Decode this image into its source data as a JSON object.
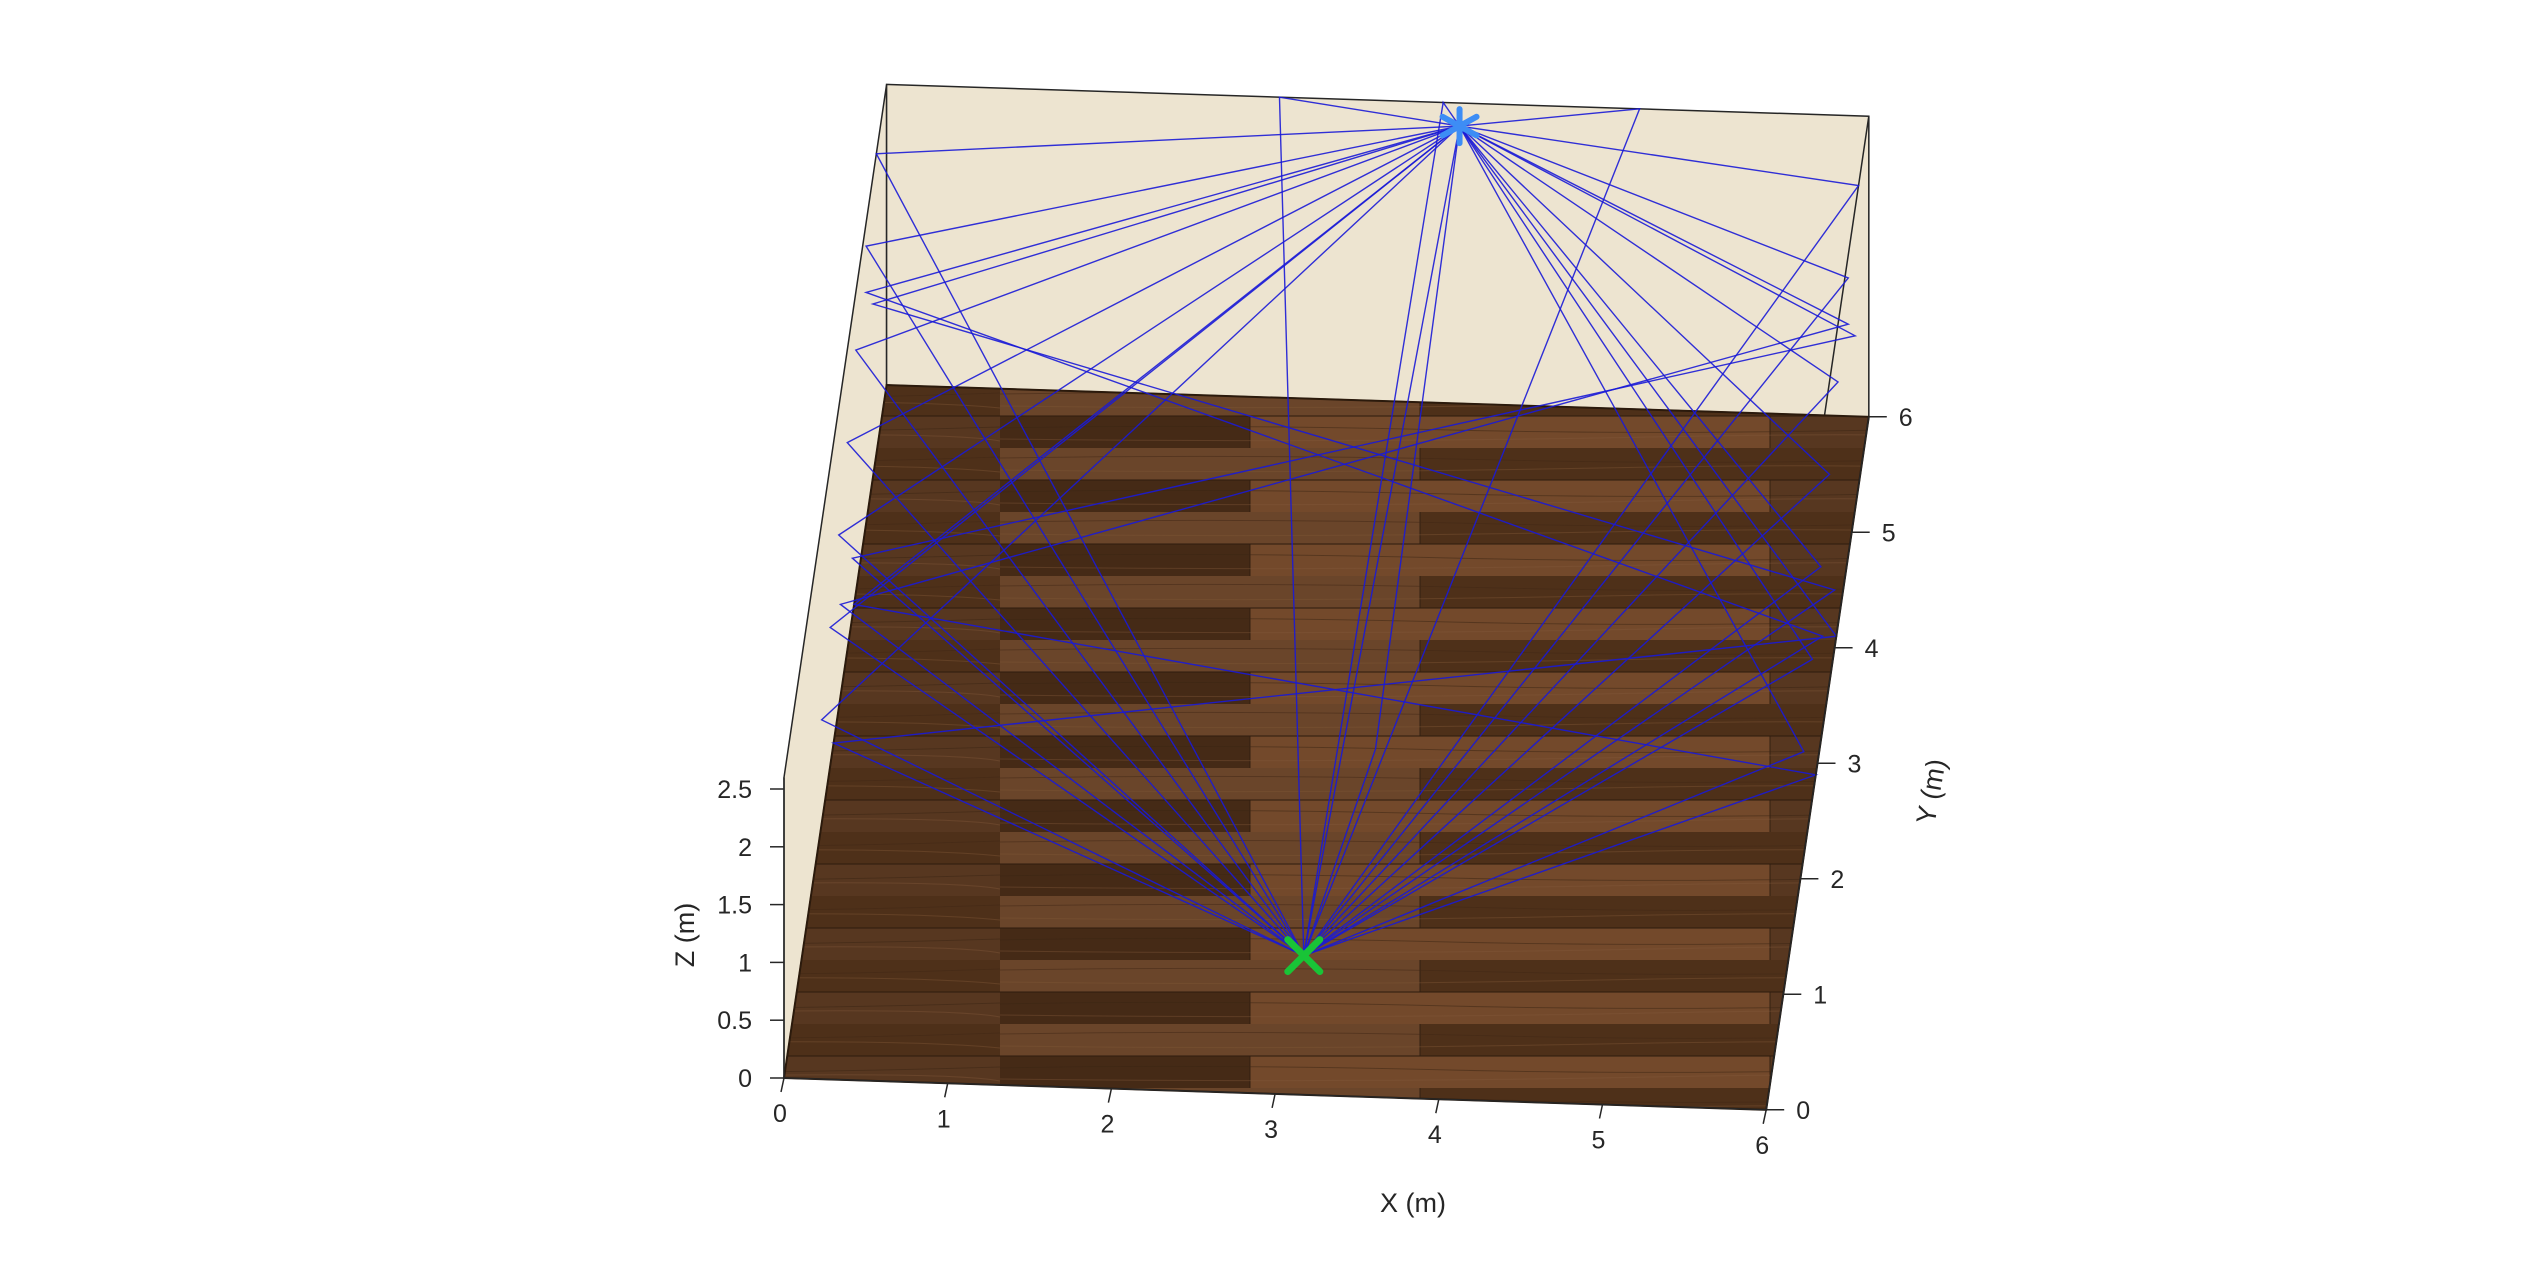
{
  "chart_data": {
    "type": "3d-scene",
    "title": "",
    "room": {
      "x_range": [
        0,
        6
      ],
      "y_range": [
        0,
        6
      ],
      "z_range": [
        0,
        2.6
      ]
    },
    "axes": {
      "x": {
        "label": "X (m)",
        "ticks": [
          "0",
          "1",
          "2",
          "3",
          "4",
          "5",
          "6"
        ],
        "tick_values": [
          0,
          1,
          2,
          3,
          4,
          5,
          6
        ]
      },
      "y": {
        "label": "Y (m)",
        "ticks": [
          "0",
          "1",
          "2",
          "3",
          "4",
          "5",
          "6"
        ],
        "tick_values": [
          0,
          1,
          2,
          3,
          4,
          5,
          6
        ]
      },
      "z": {
        "label": "Z (m)",
        "ticks": [
          "0",
          "0.5",
          "1",
          "1.5",
          "2",
          "2.5"
        ],
        "tick_values": [
          0,
          0.5,
          1,
          1.5,
          2,
          2.5
        ]
      }
    },
    "grid": false,
    "floor_texture": "dark-wood-planks",
    "colors": {
      "wall": "#ede4d0",
      "floor": "#5a3a22",
      "ray": "#1a1ad6",
      "transmitter": "#19c437",
      "receiver": "#3d8df5",
      "axis": "#262626"
    },
    "transmitter": {
      "label": "",
      "marker": "x",
      "x": 3.05,
      "y": 1.2,
      "z": 0
    },
    "receiver": {
      "label": "",
      "marker": "asterisk",
      "x": 3.5,
      "y": 6.0,
      "z": 2.4
    },
    "rays_description": "Reflected propagation paths between transmitter and receiver",
    "rays": [
      [
        [
          3.05,
          1.2,
          0
        ],
        [
          0.0,
          2.2,
          0.9
        ],
        [
          3.5,
          6.0,
          2.4
        ]
      ],
      [
        [
          3.05,
          1.2,
          0
        ],
        [
          0.0,
          2.7,
          1.2
        ],
        [
          3.5,
          6.0,
          2.4
        ]
      ],
      [
        [
          3.05,
          1.2,
          0
        ],
        [
          0.0,
          3.2,
          1.5
        ],
        [
          3.5,
          6.0,
          2.4
        ]
      ],
      [
        [
          3.05,
          1.2,
          0
        ],
        [
          0.0,
          3.7,
          1.8
        ],
        [
          3.5,
          6.0,
          2.4
        ]
      ],
      [
        [
          3.05,
          1.2,
          0
        ],
        [
          0.0,
          4.2,
          2.1
        ],
        [
          3.5,
          6.0,
          2.4
        ]
      ],
      [
        [
          3.05,
          1.2,
          0
        ],
        [
          0.0,
          4.8,
          2.4
        ],
        [
          3.5,
          6.0,
          2.4
        ]
      ],
      [
        [
          3.05,
          1.2,
          0
        ],
        [
          6.0,
          2.2,
          0.9
        ],
        [
          3.5,
          6.0,
          2.4
        ]
      ],
      [
        [
          3.05,
          1.2,
          0
        ],
        [
          6.0,
          2.7,
          1.2
        ],
        [
          3.5,
          6.0,
          2.4
        ]
      ],
      [
        [
          3.05,
          1.2,
          0
        ],
        [
          6.0,
          3.2,
          1.5
        ],
        [
          3.5,
          6.0,
          2.4
        ]
      ],
      [
        [
          3.05,
          1.2,
          0
        ],
        [
          6.0,
          3.7,
          1.8
        ],
        [
          3.5,
          6.0,
          2.4
        ]
      ],
      [
        [
          3.05,
          1.2,
          0
        ],
        [
          6.0,
          4.2,
          2.1
        ],
        [
          3.5,
          6.0,
          2.4
        ]
      ],
      [
        [
          3.05,
          1.2,
          0
        ],
        [
          6.0,
          4.8,
          2.4
        ],
        [
          3.5,
          6.0,
          2.4
        ]
      ],
      [
        [
          3.05,
          1.2,
          0
        ],
        [
          2.4,
          6.0,
          2.6
        ],
        [
          3.5,
          6.0,
          2.4
        ]
      ],
      [
        [
          3.05,
          1.2,
          0
        ],
        [
          4.6,
          6.0,
          2.6
        ],
        [
          3.5,
          6.0,
          2.4
        ]
      ],
      [
        [
          3.05,
          1.2,
          0
        ],
        [
          0.0,
          5.4,
          2.6
        ],
        [
          3.5,
          6.0,
          2.4
        ]
      ],
      [
        [
          3.05,
          1.2,
          0
        ],
        [
          6.0,
          5.4,
          2.6
        ],
        [
          3.5,
          6.0,
          2.4
        ]
      ],
      [
        [
          3.05,
          1.2,
          0
        ],
        [
          3.4,
          6.0,
          2.6
        ],
        [
          3.5,
          6.0,
          2.4
        ]
      ],
      [
        [
          3.05,
          1.2,
          0
        ],
        [
          3.5,
          6.0,
          2.4
        ]
      ],
      [
        [
          3.05,
          1.2,
          0
        ],
        [
          3.3,
          3.0,
          0
        ],
        [
          3.5,
          6.0,
          2.4
        ]
      ],
      [
        [
          3.05,
          1.2,
          0
        ],
        [
          0.0,
          2.9,
          0
        ],
        [
          6.0,
          4.1,
          0
        ],
        [
          3.5,
          6.0,
          2.4
        ]
      ],
      [
        [
          3.05,
          1.2,
          0
        ],
        [
          6.0,
          2.9,
          0
        ],
        [
          0.0,
          4.1,
          0
        ],
        [
          3.5,
          6.0,
          2.4
        ]
      ],
      [
        [
          3.05,
          1.2,
          0
        ],
        [
          0.0,
          4.0,
          0.5
        ],
        [
          6.0,
          5.2,
          1.5
        ],
        [
          3.5,
          6.0,
          2.4
        ]
      ],
      [
        [
          3.05,
          1.2,
          0
        ],
        [
          6.0,
          4.0,
          0.5
        ],
        [
          0.0,
          5.2,
          1.5
        ],
        [
          3.5,
          6.0,
          2.4
        ]
      ],
      [
        [
          3.05,
          1.2,
          0
        ],
        [
          0.0,
          3.3,
          0.8
        ],
        [
          6.0,
          4.8,
          2.0
        ],
        [
          3.5,
          6.0,
          2.4
        ]
      ],
      [
        [
          3.05,
          1.2,
          0
        ],
        [
          6.0,
          3.3,
          0.8
        ],
        [
          0.0,
          4.8,
          2.0
        ],
        [
          3.5,
          6.0,
          2.4
        ]
      ]
    ]
  }
}
